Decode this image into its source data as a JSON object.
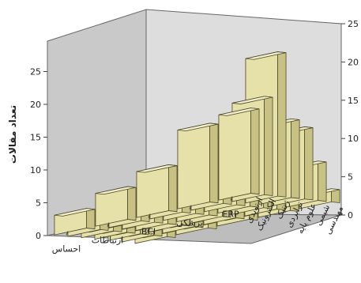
{
  "chart_data": {
    "type": "bar",
    "subtype": "3d-grouped",
    "ylabel": "تعداد مقالات",
    "ylim": [
      0,
      25
    ],
    "yticks": [
      0,
      5,
      10,
      15,
      20,
      25
    ],
    "x_categories": [
      "احساس",
      "ارتباطات",
      "BCI",
      "پزشکی",
      "ERP"
    ],
    "depth_categories": [
      "ارتوپدی",
      "الکترونیک",
      "ژنتیک",
      "ترابردی",
      "علوم پایه",
      "شیمی",
      "مهندسی"
    ],
    "values": [
      [
        3,
        5,
        7,
        12,
        13
      ],
      [
        2,
        2,
        7,
        10,
        15
      ],
      [
        1,
        3,
        5,
        10,
        22
      ],
      [
        1,
        2,
        4,
        5,
        12
      ],
      [
        1,
        2,
        3,
        6,
        11
      ],
      [
        1,
        1,
        2,
        5,
        6
      ],
      [
        1,
        1,
        1,
        4,
        2
      ]
    ],
    "grid": false,
    "legend": "none"
  },
  "colors": {
    "bar_front": "#e6e1a8",
    "bar_top": "#f2eecb",
    "bar_side": "#c7c283",
    "bar_stroke": "#4a4628",
    "wall_left": "#c9c9c9",
    "wall_back": "#dddddd",
    "floor": "#bdbdbd"
  }
}
